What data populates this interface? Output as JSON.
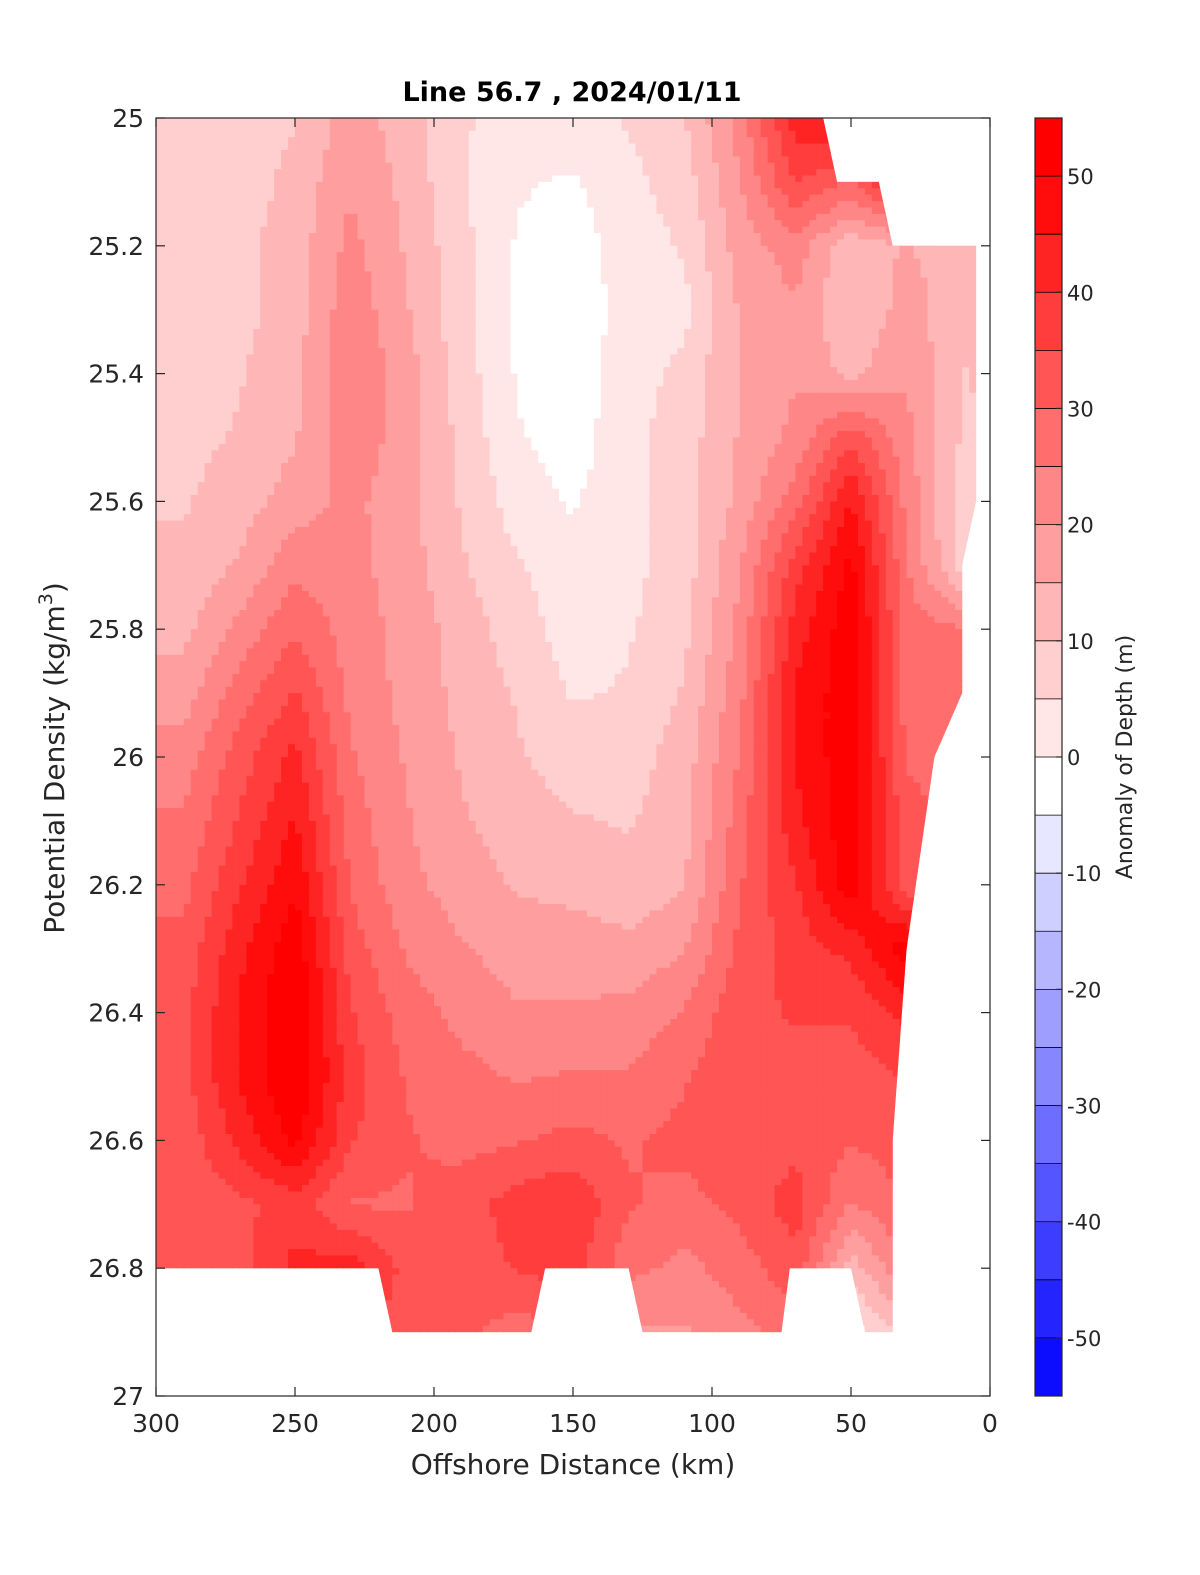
{
  "chart_data": {
    "type": "heatmap",
    "title": "Line 56.7 , 2024/01/11",
    "xlabel": "Offshore Distance (km)",
    "ylabel_main": "Potential Density (kg/m",
    "ylabel_sup": "3",
    "ylabel_close": ")",
    "x_reversed": true,
    "y_reversed": true,
    "xlim": [
      0,
      300
    ],
    "ylim": [
      25,
      27
    ],
    "x_ticks": [
      300,
      250,
      200,
      150,
      100,
      50,
      0
    ],
    "x_tick_labels": [
      "300",
      "250",
      "200",
      "150",
      "100",
      "50",
      "0"
    ],
    "y_ticks": [
      25,
      25.2,
      25.4,
      25.6,
      25.8,
      26,
      26.2,
      26.4,
      26.6,
      26.8,
      27
    ],
    "y_tick_labels": [
      "25",
      "25.2",
      "25.4",
      "25.6",
      "25.8",
      "26",
      "26.2",
      "26.4",
      "26.6",
      "26.8",
      "27"
    ],
    "colorbar": {
      "label": "Anomaly of Depth (m)",
      "clim": [
        -55,
        55
      ],
      "step": 5,
      "ticks": [
        50,
        40,
        30,
        20,
        10,
        0,
        -10,
        -20,
        -30,
        -40,
        -50
      ],
      "tick_labels": [
        "50",
        "40",
        "30",
        "20",
        "10",
        "0",
        "-10",
        "-20",
        "-30",
        "-40",
        "-50"
      ],
      "colormap": "white-red positive, white-blue negative",
      "color_pos": "#ff0000",
      "color_neg": "#0000ff",
      "color_zero": "#ffffff"
    },
    "grid_x": [
      0,
      10,
      30,
      50,
      70,
      90,
      110,
      130,
      150,
      170,
      190,
      210,
      230,
      250,
      270,
      290,
      300
    ],
    "grid_y": [
      25.0,
      25.1,
      25.2,
      25.3,
      25.4,
      25.5,
      25.6,
      25.7,
      25.8,
      25.9,
      26.0,
      26.1,
      26.2,
      26.3,
      26.4,
      26.5,
      26.6,
      26.7,
      26.8,
      26.9
    ],
    "values": [
      [
        null,
        null,
        null,
        50,
        45,
        25,
        12,
        8,
        5,
        6,
        8,
        15,
        20,
        12,
        10,
        8,
        8
      ],
      [
        null,
        null,
        48,
        32,
        38,
        22,
        10,
        6,
        2,
        3,
        8,
        16,
        22,
        14,
        10,
        8,
        8
      ],
      [
        null,
        14,
        18,
        14,
        25,
        20,
        8,
        5,
        0,
        2,
        9,
        17,
        24,
        15,
        11,
        9,
        9
      ],
      [
        null,
        14,
        20,
        12,
        22,
        18,
        6,
        4,
        0,
        2,
        9,
        18,
        26,
        15,
        11,
        9,
        9
      ],
      [
        null,
        12,
        22,
        16,
        22,
        18,
        9,
        5,
        0,
        2,
        10,
        20,
        27,
        16,
        12,
        10,
        10
      ],
      [
        null,
        12,
        24,
        36,
        24,
        18,
        10,
        6,
        0,
        3,
        11,
        20,
        26,
        17,
        13,
        11,
        11
      ],
      [
        null,
        10,
        26,
        48,
        30,
        19,
        10,
        6,
        2,
        5,
        12,
        19,
        24,
        20,
        15,
        12,
        12
      ],
      [
        null,
        null,
        28,
        54,
        40,
        22,
        10,
        6,
        4,
        8,
        13,
        20,
        24,
        26,
        18,
        14,
        14
      ],
      [
        null,
        null,
        30,
        56,
        45,
        24,
        11,
        7,
        5,
        10,
        15,
        21,
        25,
        32,
        24,
        16,
        16
      ],
      [
        null,
        null,
        30,
        56,
        48,
        26,
        13,
        8,
        7,
        12,
        16,
        21,
        26,
        38,
        30,
        20,
        20
      ],
      [
        null,
        null,
        32,
        56,
        48,
        28,
        15,
        10,
        10,
        13,
        17,
        22,
        28,
        44,
        35,
        25,
        25
      ],
      [
        null,
        null,
        34,
        56,
        46,
        30,
        16,
        12,
        13,
        15,
        18,
        23,
        30,
        48,
        38,
        28,
        28
      ],
      [
        null,
        null,
        null,
        56,
        42,
        32,
        17,
        14,
        16,
        17,
        20,
        24,
        32,
        52,
        42,
        31,
        31
      ],
      [
        null,
        null,
        null,
        44,
        40,
        34,
        22,
        19,
        20,
        20,
        23,
        27,
        35,
        56,
        46,
        34,
        34
      ],
      [
        null,
        null,
        null,
        38,
        38,
        36,
        28,
        24,
        23,
        23,
        26,
        30,
        38,
        58,
        48,
        36,
        36
      ],
      [
        null,
        null,
        null,
        35,
        36,
        36,
        32,
        28,
        28,
        27,
        29,
        32,
        40,
        58,
        48,
        36,
        36
      ],
      [
        null,
        null,
        null,
        33,
        36,
        35,
        34,
        32,
        34,
        32,
        31,
        33,
        38,
        54,
        44,
        34,
        34
      ],
      [
        null,
        null,
        null,
        27,
        40,
        34,
        31,
        33,
        42,
        40,
        35,
        32,
        32,
        40,
        36,
        34,
        34
      ],
      [
        null,
        null,
        null,
        15,
        36,
        30,
        26,
        29,
        40,
        38,
        34,
        36,
        45,
        44,
        36,
        34,
        34
      ],
      [
        null,
        null,
        null,
        4,
        30,
        26,
        22,
        22,
        32,
        30,
        34,
        36,
        null,
        null,
        null,
        null,
        null
      ]
    ],
    "data_mask_polygon": [
      [
        60,
        25.0
      ],
      [
        300,
        25.0
      ],
      [
        300,
        26.8
      ],
      [
        220,
        26.8
      ],
      [
        215,
        26.9
      ],
      [
        165,
        26.9
      ],
      [
        160,
        26.8
      ],
      [
        130,
        26.8
      ],
      [
        125,
        26.9
      ],
      [
        75,
        26.9
      ],
      [
        72,
        26.8
      ],
      [
        50,
        26.8
      ],
      [
        45,
        26.9
      ],
      [
        35,
        26.9
      ],
      [
        35,
        26.6
      ],
      [
        30,
        26.3
      ],
      [
        20,
        26.0
      ],
      [
        10,
        25.9
      ],
      [
        10,
        25.7
      ],
      [
        5,
        25.6
      ],
      [
        5,
        25.2
      ],
      [
        35,
        25.2
      ],
      [
        40,
        25.1
      ],
      [
        55,
        25.1
      ]
    ]
  }
}
